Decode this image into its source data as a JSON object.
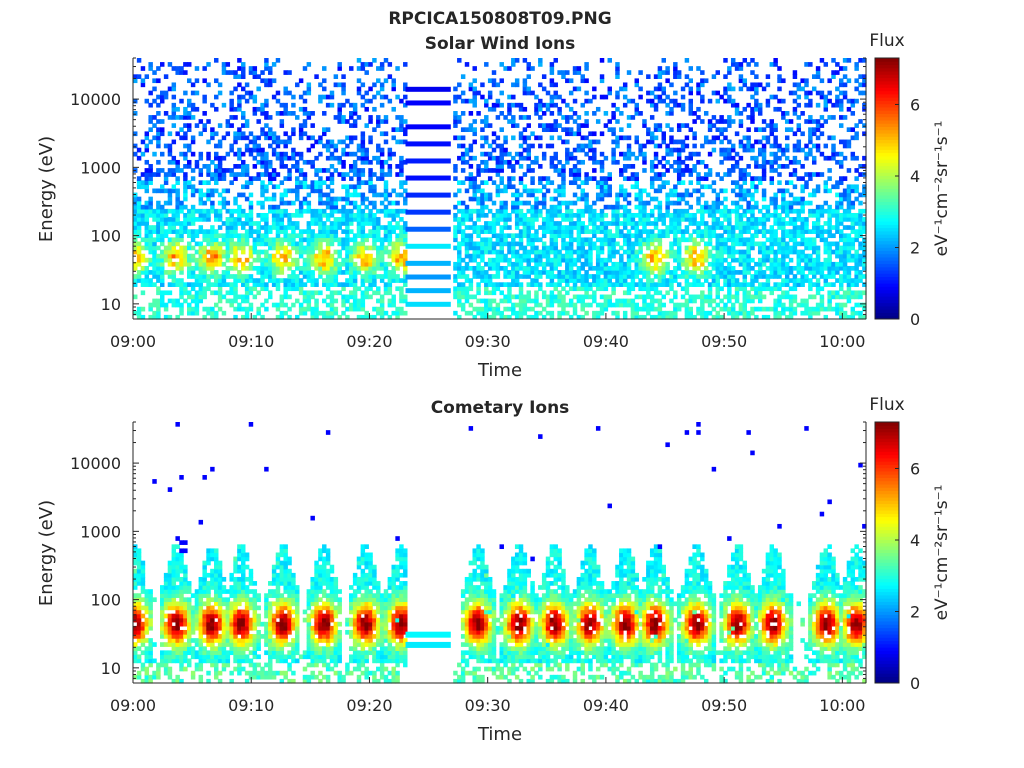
{
  "figure_title": "RPCICA150808T09.PNG",
  "chart_data": [
    {
      "type": "heatmap",
      "title": "Solar Wind Ions",
      "xlabel": "Time",
      "ylabel": "Energy (eV)",
      "x_ticks": [
        "09:00",
        "09:10",
        "09:20",
        "09:30",
        "09:40",
        "09:50",
        "10:00"
      ],
      "xlim": [
        "09:00",
        "10:02"
      ],
      "y_scale": "log",
      "y_ticks": [
        "10",
        "100",
        "1000",
        "10000"
      ],
      "ylim": [
        6,
        40000
      ],
      "data_gap": [
        "09:23",
        "09:27"
      ],
      "colorbar": {
        "title": "Flux",
        "label": "eV⁻¹cm⁻²sr⁻¹s⁻¹",
        "ticks": [
          "0",
          "2",
          "4",
          "6"
        ],
        "range": [
          0,
          7.3
        ],
        "colormap": "jet"
      },
      "flux_bursts_minutes": [
        0,
        3.5,
        6.5,
        9,
        12.5,
        16,
        19.5,
        22.5,
        44,
        47.5
      ]
    },
    {
      "type": "heatmap",
      "title": "Cometary Ions",
      "xlabel": "Time",
      "ylabel": "Energy (eV)",
      "x_ticks": [
        "09:00",
        "09:10",
        "09:20",
        "09:30",
        "09:40",
        "09:50",
        "10:00"
      ],
      "xlim": [
        "09:00",
        "10:02"
      ],
      "y_scale": "log",
      "y_ticks": [
        "10",
        "100",
        "1000",
        "10000"
      ],
      "ylim": [
        6,
        40000
      ],
      "data_gap": [
        "09:23",
        "09:27"
      ],
      "colorbar": {
        "title": "Flux",
        "label": "eV⁻¹cm⁻²sr⁻¹s⁻¹",
        "ticks": [
          "0",
          "2",
          "4",
          "6"
        ],
        "range": [
          0,
          7.3
        ],
        "colormap": "jet"
      },
      "flux_bursts_minutes": [
        0,
        3.5,
        6.5,
        9,
        12.5,
        16,
        19.5,
        22.5,
        29,
        32.5,
        35.5,
        38.5,
        41.5,
        44,
        47.5,
        51,
        54,
        58.5,
        61
      ]
    }
  ]
}
